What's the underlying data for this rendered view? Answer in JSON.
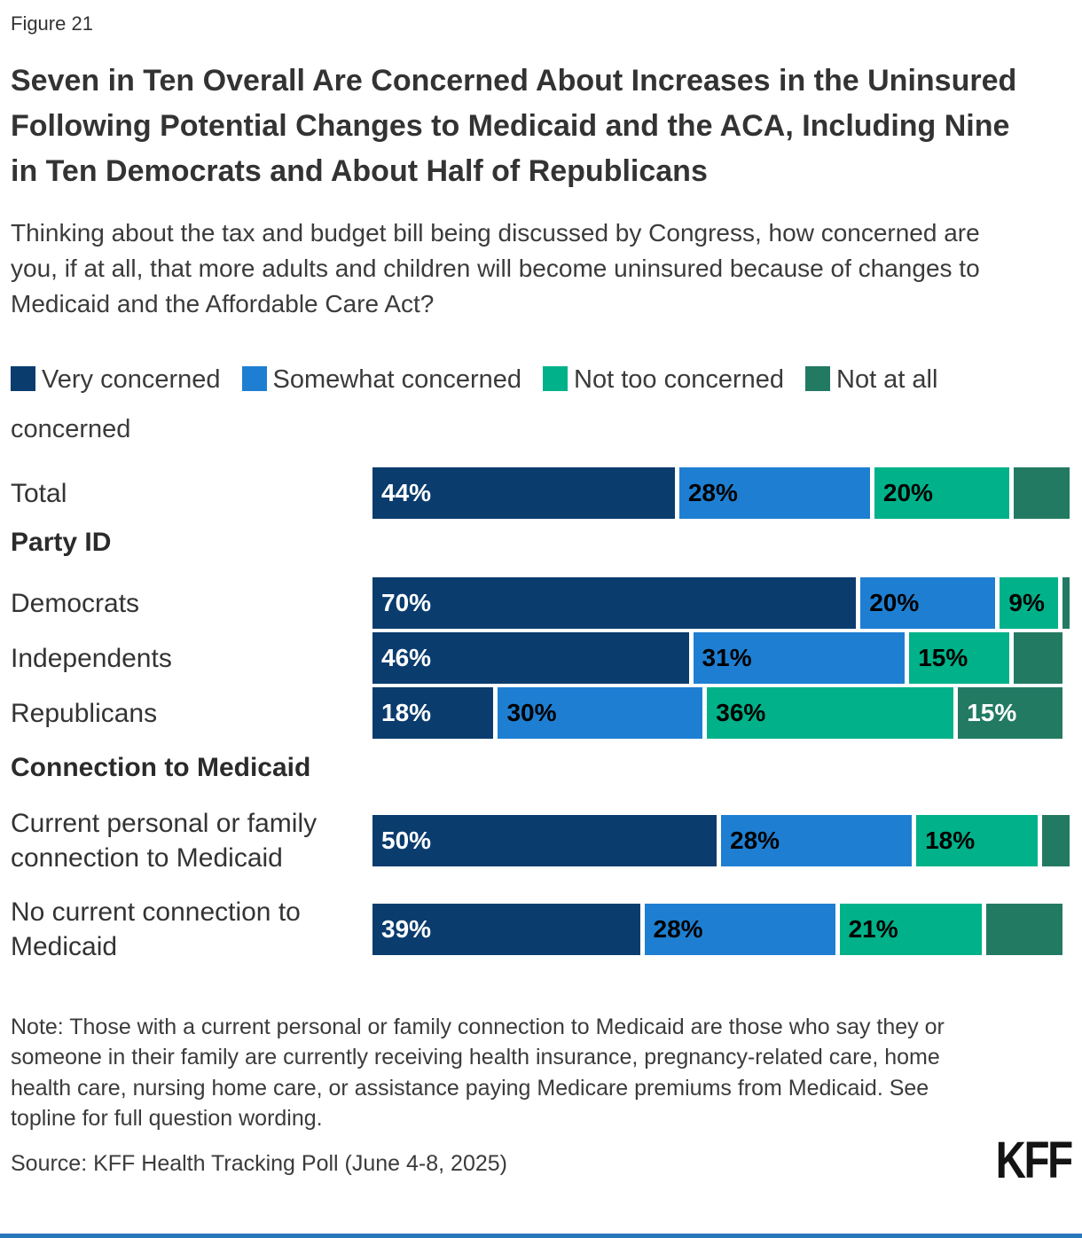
{
  "figure_label": "Figure 21",
  "title": "Seven in Ten Overall Are Concerned About Increases in the Uninsured Following Potential Changes to Medicaid and the ACA, Including Nine in Ten Democrats and About Half of Republicans",
  "subtitle": "Thinking about the tax and budget bill being discussed by Congress, how concerned are you, if at all, that more adults and children will become uninsured because of changes to Medicaid and the Affordable Care Act?",
  "legend": [
    {
      "label": "Very concerned",
      "color": "#0a3c6e"
    },
    {
      "label": "Somewhat concerned",
      "color": "#1e7fd2"
    },
    {
      "label": "Not too concerned",
      "color": "#00b189"
    },
    {
      "label": "Not at all concerned",
      "color": "#237a63"
    }
  ],
  "chart_data": {
    "type": "bar",
    "variant": "horizontal-stacked-percent",
    "xlim": [
      0,
      100
    ],
    "grid": false,
    "legend_position": "top",
    "series_names": [
      "Very concerned",
      "Somewhat concerned",
      "Not too concerned",
      "Not at all concerned"
    ],
    "rows": [
      {
        "kind": "bar",
        "label": "Total",
        "values": [
          44,
          28,
          20,
          8
        ],
        "value_labels": [
          "44%",
          "28%",
          "20%",
          ""
        ]
      },
      {
        "kind": "section",
        "label": "Party ID"
      },
      {
        "kind": "bar",
        "label": "Democrats",
        "values": [
          70,
          20,
          9,
          1
        ],
        "value_labels": [
          "70%",
          "20%",
          "9%",
          ""
        ]
      },
      {
        "kind": "bar",
        "label": "Independents",
        "values": [
          46,
          31,
          15,
          7
        ],
        "value_labels": [
          "46%",
          "31%",
          "15%",
          ""
        ]
      },
      {
        "kind": "bar",
        "label": "Republicans",
        "values": [
          18,
          30,
          36,
          15
        ],
        "value_labels": [
          "18%",
          "30%",
          "36%",
          "15%"
        ]
      },
      {
        "kind": "section",
        "label": "Connection to Medicaid"
      },
      {
        "kind": "bar",
        "label": "Current personal or family connection to Medicaid",
        "values": [
          50,
          28,
          18,
          4
        ],
        "value_labels": [
          "50%",
          "28%",
          "18%",
          ""
        ]
      },
      {
        "kind": "bar",
        "label": "No current connection to Medicaid",
        "values": [
          39,
          28,
          21,
          11
        ],
        "value_labels": [
          "39%",
          "28%",
          "21%",
          ""
        ]
      }
    ]
  },
  "note": "Note: Those with a current personal or family connection to Medicaid are those who say they or someone in their family are currently receiving health insurance, pregnancy-related care, home health care, nursing home care, or assistance paying Medicare premiums from Medicaid. See topline for full question wording.",
  "source": "Source: KFF Health Tracking Poll (June 4-8, 2025)",
  "logo_text": "KFF",
  "accent_bar_color": "#2878bc"
}
